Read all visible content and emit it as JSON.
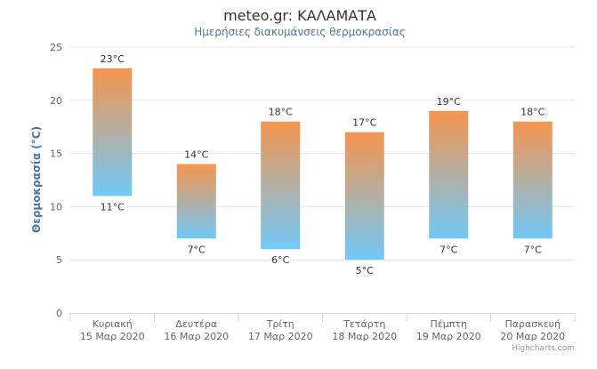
{
  "chart_data": {
    "type": "bar",
    "title": "meteo.gr: ΚΑΛΑΜΑΤΑ",
    "subtitle": "Ημερήσιες διακυμάνσεις θερμοκρασίας",
    "ylabel": "Θερμοκρασία (°C)",
    "ylim": [
      0,
      25
    ],
    "yticks": [
      0,
      5,
      10,
      15,
      20,
      25
    ],
    "grid": true,
    "categories": [
      [
        "Κυριακή",
        "15 Μαρ 2020"
      ],
      [
        "Δευτέρα",
        "16 Μαρ 2020"
      ],
      [
        "Τρίτη",
        "17 Μαρ 2020"
      ],
      [
        "Τετάρτη",
        "18 Μαρ 2020"
      ],
      [
        "Πέμπτη",
        "19 Μαρ 2020"
      ],
      [
        "Παρασκευή",
        "20 Μαρ 2020"
      ]
    ],
    "ranges": [
      {
        "low": 11,
        "high": 23,
        "low_label": "11°C",
        "high_label": "23°C"
      },
      {
        "low": 7,
        "high": 14,
        "low_label": "7°C",
        "high_label": "14°C"
      },
      {
        "low": 6,
        "high": 18,
        "low_label": "6°C",
        "high_label": "18°C"
      },
      {
        "low": 5,
        "high": 17,
        "low_label": "5°C",
        "high_label": "17°C"
      },
      {
        "low": 7,
        "high": 19,
        "low_label": "7°C",
        "high_label": "19°C"
      },
      {
        "low": 7,
        "high": 18,
        "low_label": "7°C",
        "high_label": "18°C"
      }
    ],
    "colors": {
      "high": "#f5954e",
      "low": "#71c8f8",
      "title": "#333333",
      "subtitle": "#4d759e",
      "axis_title": "#4d759e",
      "grid": "#e6e6e6",
      "labels": "#666666"
    },
    "credits": "Highcharts.com"
  }
}
